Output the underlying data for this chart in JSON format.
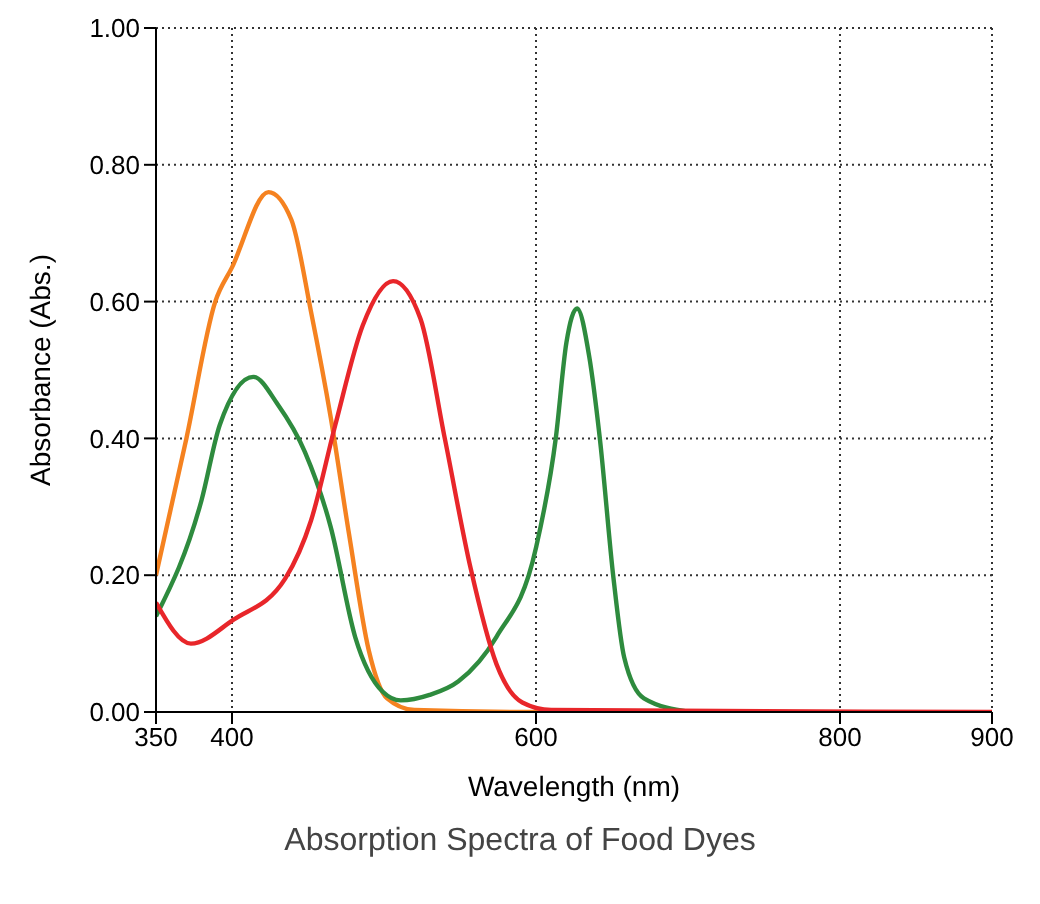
{
  "chart_data": {
    "type": "line",
    "title": "Absorption Spectra of Food Dyes",
    "xlabel": "Wavelength (nm)",
    "ylabel": "Absorbance (Abs.)",
    "xlim": [
      350,
      900
    ],
    "xticks": [
      350,
      400,
      600,
      800,
      900
    ],
    "ylim": [
      0,
      1
    ],
    "yticks": [
      {
        "value": 0,
        "label": "0.00"
      },
      {
        "value": 0.2,
        "label": "0.20"
      },
      {
        "value": 0.4,
        "label": "0.40"
      },
      {
        "value": 0.6,
        "label": "0.60"
      },
      {
        "value": 0.8,
        "label": "0.80"
      },
      {
        "value": 1,
        "label": "1.00"
      }
    ],
    "grid": true,
    "marker": "none",
    "line_style": "solid",
    "series": [
      {
        "color": "#f58220",
        "x": [
          350,
          370,
          389,
          400,
          424,
          439,
          452,
          465,
          477,
          490,
          502,
          520,
          600,
          660
        ],
        "values": [
          0.2,
          0.4,
          0.6,
          0.65,
          0.76,
          0.72,
          0.585,
          0.43,
          0.26,
          0.09,
          0.02,
          0.003,
          0,
          0
        ]
      },
      {
        "color": "#2e8b3e",
        "x": [
          350,
          380,
          392,
          414,
          430,
          448,
          465,
          481,
          499,
          511,
          530,
          549,
          574,
          600,
          613,
          620,
          627,
          635,
          642,
          651,
          658,
          671,
          701
        ],
        "values": [
          0.14,
          0.31,
          0.42,
          0.49,
          0.45,
          0.38,
          0.27,
          0.11,
          0.03,
          0.017,
          0.025,
          0.045,
          0.11,
          0.24,
          0.4,
          0.54,
          0.59,
          0.52,
          0.4,
          0.195,
          0.08,
          0.02,
          0
        ]
      },
      {
        "color": "#e8262a",
        "x": [
          350,
          373,
          401,
          435,
          452,
          468,
          486,
          506,
          524,
          540,
          557,
          574,
          591,
          610,
          900
        ],
        "values": [
          0.16,
          0.1,
          0.135,
          0.195,
          0.28,
          0.42,
          0.565,
          0.63,
          0.575,
          0.4,
          0.21,
          0.07,
          0.014,
          0.003,
          0
        ]
      }
    ]
  }
}
